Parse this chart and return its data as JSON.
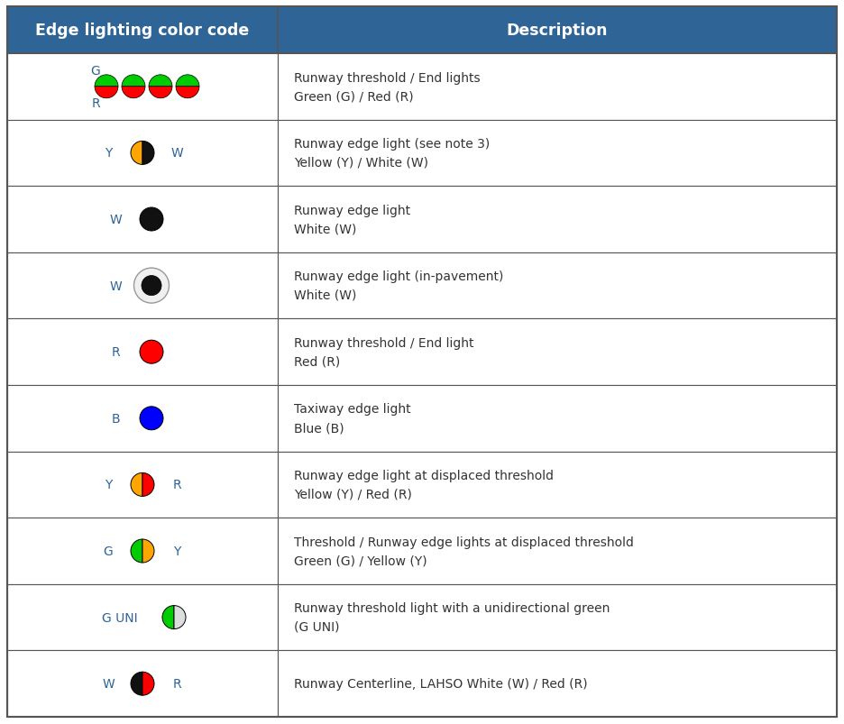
{
  "header_bg": "#2E6496",
  "header_text_color": "#FFFFFF",
  "row_bg": "#FFFFFF",
  "border_color": "#555555",
  "cell_text_color": "#333333",
  "label_color": "#2E6496",
  "col1_header": "Edge lighting color code",
  "col2_header": "Description",
  "rows": [
    {
      "description": "Runway threshold / End lights\nGreen (G) / Red (R)",
      "symbol_type": "four_bicolor_circles",
      "circle_colors_top": "#00CC00",
      "circle_colors_bottom": "#FF0000",
      "top_label": "G",
      "bottom_label": "R"
    },
    {
      "description": "Runway edge light (see note 3)\nYellow (Y) / White (W)",
      "symbol_type": "bicolor_circle_with_labels",
      "colors": [
        "#FFA500",
        "#111111"
      ],
      "labels": [
        "Y",
        "W"
      ]
    },
    {
      "description": "Runway edge light\nWhite (W)",
      "symbol_type": "single_circle",
      "colors": [
        "#111111"
      ],
      "labels": [
        "W"
      ]
    },
    {
      "description": "Runway edge light (in-pavement)\nWhite (W)",
      "symbol_type": "inpavement_circle",
      "colors": [
        "#111111"
      ],
      "labels": [
        "W"
      ]
    },
    {
      "description": "Runway threshold / End light\nRed (R)",
      "symbol_type": "single_circle",
      "colors": [
        "#FF0000"
      ],
      "labels": [
        "R"
      ]
    },
    {
      "description": "Taxiway edge light\nBlue (B)",
      "symbol_type": "single_circle",
      "colors": [
        "#0000FF"
      ],
      "labels": [
        "B"
      ]
    },
    {
      "description": "Runway edge light at displaced threshold\nYellow (Y) / Red (R)",
      "symbol_type": "bicolor_circle_with_labels",
      "colors": [
        "#FFA500",
        "#FF0000"
      ],
      "labels": [
        "Y",
        "R"
      ]
    },
    {
      "description": "Threshold / Runway edge lights at displaced threshold\nGreen (G) / Yellow (Y)",
      "symbol_type": "bicolor_circle_with_labels",
      "colors": [
        "#00CC00",
        "#FFA500"
      ],
      "labels": [
        "G",
        "Y"
      ]
    },
    {
      "description": "Runway threshold light with a unidirectional green\n(G UNI)",
      "symbol_type": "guni_circle",
      "colors": [
        "#00CC00",
        "#DDDDDD"
      ],
      "labels": [
        "G UNI"
      ]
    },
    {
      "description": "Runway Centerline, LAHSO White (W) / Red (R)",
      "symbol_type": "bicolor_circle_with_labels",
      "colors": [
        "#111111",
        "#FF0000"
      ],
      "labels": [
        "W",
        "R"
      ]
    }
  ],
  "fig_width": 9.36,
  "fig_height": 8.04,
  "dpi": 100
}
